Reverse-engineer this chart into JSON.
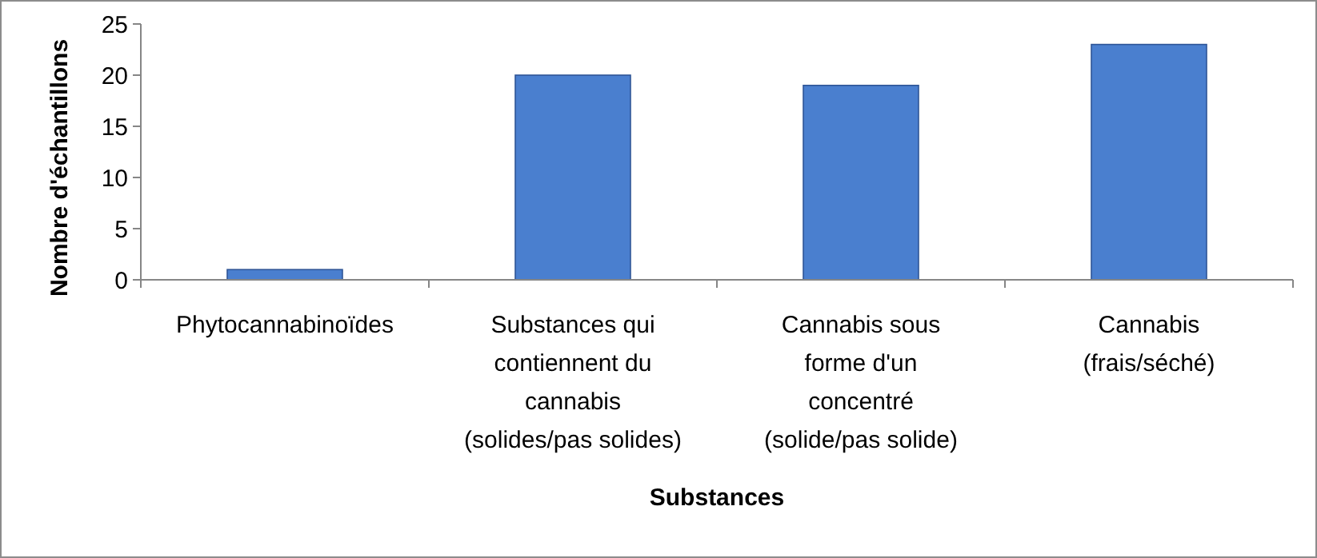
{
  "chart_data": {
    "type": "bar",
    "xlabel": "Substances",
    "ylabel": "Nombre d'échantillons",
    "categories": [
      "Phytocannabinoïdes",
      "Substances qui contiennent du cannabis (solides/pas solides)",
      "Cannabis sous forme d'un concentré (solide/pas solide)",
      "Cannabis (frais/séché)"
    ],
    "values": [
      1,
      20,
      19,
      23
    ],
    "color": "#4a7fcf",
    "ylim": [
      0,
      25
    ],
    "yticks": [
      0,
      5,
      10,
      15,
      20,
      25
    ],
    "grid": false
  }
}
